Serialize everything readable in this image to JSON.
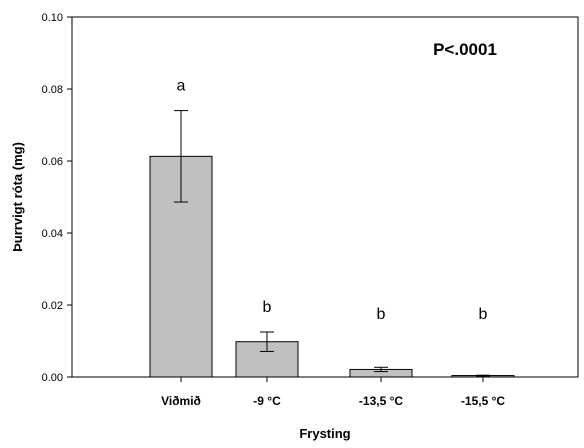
{
  "chart_data": {
    "type": "bar",
    "categories": [
      "Viðmið",
      "-9 °C",
      "-13,5 °C",
      "-15,5 °C"
    ],
    "values": [
      0.0613,
      0.0098,
      0.0021,
      0.0004
    ],
    "error": [
      0.0127,
      0.0027,
      0.0006,
      0.0001
    ],
    "significance_letters": [
      "a",
      "b",
      "b",
      "b"
    ],
    "annotation": "P<.0001",
    "xlabel": "Frysting",
    "ylabel": "Þurrvigt róta (mg)",
    "ylim": [
      0,
      0.1
    ],
    "yticks": [
      "0.00",
      "0.02",
      "0.04",
      "0.06",
      "0.08",
      "0.10"
    ],
    "bar_color": "#c0c0c0",
    "grid": false
  }
}
